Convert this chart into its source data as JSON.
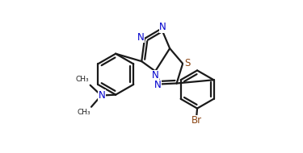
{
  "bg_color": "#ffffff",
  "N_color": "#0000cd",
  "S_color": "#8b4513",
  "Br_color": "#8b4513",
  "line_color": "#1a1a1a",
  "line_width": 1.6,
  "figsize": [
    3.75,
    1.9
  ],
  "dpi": 100,
  "xlim": [
    0.0,
    1.0
  ],
  "ylim": [
    0.0,
    1.0
  ]
}
